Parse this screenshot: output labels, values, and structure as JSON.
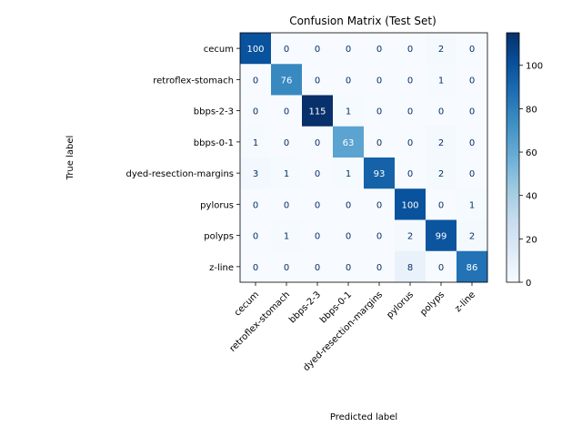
{
  "chart_data": {
    "type": "heatmap",
    "title": "Confusion Matrix (Test Set)",
    "xlabel": "Predicted label",
    "ylabel": "True label",
    "labels": [
      "cecum",
      "retroflex-stomach",
      "bbps-2-3",
      "bbps-0-1",
      "dyed-resection-margins",
      "pylorus",
      "polyps",
      "z-line"
    ],
    "matrix": [
      [
        100,
        0,
        0,
        0,
        0,
        0,
        2,
        0
      ],
      [
        0,
        76,
        0,
        0,
        0,
        0,
        1,
        0
      ],
      [
        0,
        0,
        115,
        1,
        0,
        0,
        0,
        0
      ],
      [
        1,
        0,
        0,
        63,
        0,
        0,
        2,
        0
      ],
      [
        3,
        1,
        0,
        1,
        93,
        0,
        2,
        0
      ],
      [
        0,
        0,
        0,
        0,
        0,
        100,
        0,
        1
      ],
      [
        0,
        1,
        0,
        0,
        0,
        2,
        99,
        2
      ],
      [
        0,
        0,
        0,
        0,
        0,
        8,
        0,
        86
      ]
    ],
    "colormap": "Blues",
    "vmin": 0,
    "vmax": 115,
    "colorbar_ticks": [
      0,
      20,
      40,
      60,
      80,
      100
    ],
    "grid": false
  }
}
